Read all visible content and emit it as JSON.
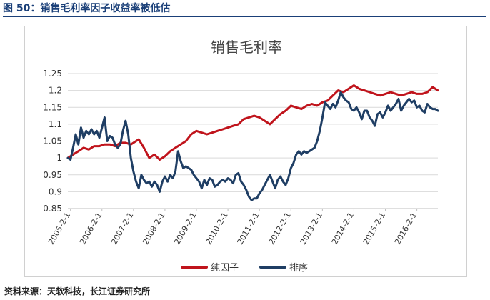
{
  "caption": "图 50：销售毛利率因子收益率被低估",
  "source": "资料来源：天软科技，长江证券研究所",
  "chart_data": {
    "type": "line",
    "title": "销售毛利率",
    "xlabel": "",
    "ylabel": "",
    "ylim": [
      0.85,
      1.25
    ],
    "yticks": [
      "0.85",
      "0.9",
      "0.95",
      "1",
      "1.05",
      "1.1",
      "1.15",
      "1.2",
      "1.25"
    ],
    "xticks": [
      "2005-2-1",
      "2006-2-1",
      "2007-2-1",
      "2008-2-1",
      "2009-2-1",
      "2010-2-1",
      "2011-2-1",
      "2012-2-1",
      "2013-2-1",
      "2014-2-1",
      "2015-2-1",
      "2016-2-1"
    ],
    "grid": true,
    "legend_position": "bottom",
    "x_start": "2005-01",
    "x_end": "2016-10",
    "series": [
      {
        "name": "纯因子",
        "color": "#c0141c",
        "points": [
          [
            "2005-01",
            1.0
          ],
          [
            "2005-03",
            1.01
          ],
          [
            "2005-05",
            1.02
          ],
          [
            "2005-07",
            1.03
          ],
          [
            "2005-09",
            1.025
          ],
          [
            "2005-11",
            1.035
          ],
          [
            "2006-01",
            1.035
          ],
          [
            "2006-03",
            1.04
          ],
          [
            "2006-05",
            1.04
          ],
          [
            "2006-07",
            1.035
          ],
          [
            "2006-09",
            1.045
          ],
          [
            "2006-11",
            1.045
          ],
          [
            "2007-01",
            1.04
          ],
          [
            "2007-03",
            1.05
          ],
          [
            "2007-04",
            1.055
          ],
          [
            "2007-06",
            1.03
          ],
          [
            "2007-08",
            1.0
          ],
          [
            "2007-10",
            1.01
          ],
          [
            "2007-12",
            0.995
          ],
          [
            "2008-02",
            1.005
          ],
          [
            "2008-04",
            1.02
          ],
          [
            "2008-06",
            1.03
          ],
          [
            "2008-08",
            1.04
          ],
          [
            "2008-10",
            1.05
          ],
          [
            "2008-12",
            1.07
          ],
          [
            "2009-02",
            1.08
          ],
          [
            "2009-04",
            1.075
          ],
          [
            "2009-06",
            1.07
          ],
          [
            "2009-08",
            1.075
          ],
          [
            "2009-10",
            1.08
          ],
          [
            "2009-12",
            1.085
          ],
          [
            "2010-02",
            1.09
          ],
          [
            "2010-04",
            1.095
          ],
          [
            "2010-06",
            1.1
          ],
          [
            "2010-08",
            1.115
          ],
          [
            "2010-10",
            1.12
          ],
          [
            "2010-12",
            1.125
          ],
          [
            "2011-02",
            1.12
          ],
          [
            "2011-04",
            1.11
          ],
          [
            "2011-06",
            1.1
          ],
          [
            "2011-08",
            1.115
          ],
          [
            "2011-10",
            1.13
          ],
          [
            "2011-12",
            1.14
          ],
          [
            "2012-02",
            1.155
          ],
          [
            "2012-04",
            1.15
          ],
          [
            "2012-06",
            1.145
          ],
          [
            "2012-08",
            1.155
          ],
          [
            "2012-10",
            1.16
          ],
          [
            "2012-12",
            1.155
          ],
          [
            "2013-02",
            1.165
          ],
          [
            "2013-04",
            1.17
          ],
          [
            "2013-06",
            1.185
          ],
          [
            "2013-08",
            1.2
          ],
          [
            "2013-10",
            1.195
          ],
          [
            "2013-12",
            1.205
          ],
          [
            "2014-02",
            1.215
          ],
          [
            "2014-04",
            1.205
          ],
          [
            "2014-06",
            1.2
          ],
          [
            "2014-08",
            1.195
          ],
          [
            "2014-10",
            1.19
          ],
          [
            "2014-12",
            1.185
          ],
          [
            "2015-02",
            1.19
          ],
          [
            "2015-04",
            1.195
          ],
          [
            "2015-06",
            1.19
          ],
          [
            "2015-08",
            1.185
          ],
          [
            "2015-10",
            1.19
          ],
          [
            "2015-12",
            1.195
          ],
          [
            "2016-02",
            1.19
          ],
          [
            "2016-04",
            1.19
          ],
          [
            "2016-06",
            1.195
          ],
          [
            "2016-08",
            1.21
          ],
          [
            "2016-10",
            1.2
          ]
        ]
      },
      {
        "name": "排序",
        "color": "#1f3e64",
        "points": [
          [
            "2005-01",
            1.0
          ],
          [
            "2005-02",
            0.995
          ],
          [
            "2005-03",
            1.03
          ],
          [
            "2005-04",
            1.07
          ],
          [
            "2005-05",
            1.04
          ],
          [
            "2005-06",
            1.09
          ],
          [
            "2005-07",
            1.06
          ],
          [
            "2005-08",
            1.08
          ],
          [
            "2005-09",
            1.07
          ],
          [
            "2005-10",
            1.085
          ],
          [
            "2005-11",
            1.07
          ],
          [
            "2005-12",
            1.08
          ],
          [
            "2006-01",
            1.06
          ],
          [
            "2006-02",
            1.09
          ],
          [
            "2006-03",
            1.12
          ],
          [
            "2006-04",
            1.05
          ],
          [
            "2006-05",
            1.065
          ],
          [
            "2006-06",
            1.06
          ],
          [
            "2006-07",
            1.04
          ],
          [
            "2006-08",
            1.03
          ],
          [
            "2006-09",
            1.04
          ],
          [
            "2006-10",
            1.08
          ],
          [
            "2006-11",
            1.11
          ],
          [
            "2006-12",
            1.07
          ],
          [
            "2007-01",
            1.0
          ],
          [
            "2007-02",
            0.96
          ],
          [
            "2007-03",
            0.93
          ],
          [
            "2007-04",
            0.91
          ],
          [
            "2007-05",
            0.95
          ],
          [
            "2007-06",
            0.935
          ],
          [
            "2007-07",
            0.925
          ],
          [
            "2007-08",
            0.93
          ],
          [
            "2007-09",
            0.915
          ],
          [
            "2007-10",
            0.93
          ],
          [
            "2007-11",
            0.92
          ],
          [
            "2007-12",
            0.9
          ],
          [
            "2008-01",
            0.93
          ],
          [
            "2008-02",
            0.945
          ],
          [
            "2008-03",
            0.93
          ],
          [
            "2008-04",
            0.95
          ],
          [
            "2008-05",
            0.94
          ],
          [
            "2008-06",
            0.96
          ],
          [
            "2008-07",
            1.02
          ],
          [
            "2008-08",
            0.99
          ],
          [
            "2008-09",
            0.97
          ],
          [
            "2008-10",
            0.975
          ],
          [
            "2008-11",
            0.97
          ],
          [
            "2008-12",
            0.965
          ],
          [
            "2009-01",
            0.95
          ],
          [
            "2009-02",
            0.94
          ],
          [
            "2009-03",
            0.93
          ],
          [
            "2009-04",
            0.91
          ],
          [
            "2009-05",
            0.935
          ],
          [
            "2009-06",
            0.92
          ],
          [
            "2009-07",
            0.94
          ],
          [
            "2009-08",
            0.935
          ],
          [
            "2009-09",
            0.915
          ],
          [
            "2009-10",
            0.92
          ],
          [
            "2009-11",
            0.93
          ],
          [
            "2009-12",
            0.935
          ],
          [
            "2010-01",
            0.93
          ],
          [
            "2010-02",
            0.94
          ],
          [
            "2010-03",
            0.935
          ],
          [
            "2010-04",
            0.925
          ],
          [
            "2010-05",
            0.95
          ],
          [
            "2010-06",
            0.955
          ],
          [
            "2010-07",
            0.93
          ],
          [
            "2010-08",
            0.92
          ],
          [
            "2010-09",
            0.905
          ],
          [
            "2010-10",
            0.885
          ],
          [
            "2010-11",
            0.875
          ],
          [
            "2010-12",
            0.88
          ],
          [
            "2011-01",
            0.88
          ],
          [
            "2011-02",
            0.895
          ],
          [
            "2011-03",
            0.905
          ],
          [
            "2011-04",
            0.92
          ],
          [
            "2011-05",
            0.935
          ],
          [
            "2011-06",
            0.95
          ],
          [
            "2011-07",
            0.93
          ],
          [
            "2011-08",
            0.91
          ],
          [
            "2011-09",
            0.935
          ],
          [
            "2011-10",
            0.945
          ],
          [
            "2011-11",
            0.93
          ],
          [
            "2011-12",
            0.92
          ],
          [
            "2012-01",
            0.94
          ],
          [
            "2012-02",
            0.97
          ],
          [
            "2012-03",
            0.985
          ],
          [
            "2012-04",
            1.01
          ],
          [
            "2012-05",
            1.02
          ],
          [
            "2012-06",
            1.01
          ],
          [
            "2012-07",
            1.02
          ],
          [
            "2012-08",
            1.015
          ],
          [
            "2012-09",
            1.02
          ],
          [
            "2012-10",
            1.025
          ],
          [
            "2012-11",
            1.03
          ],
          [
            "2012-12",
            1.05
          ],
          [
            "2013-01",
            1.08
          ],
          [
            "2013-02",
            1.12
          ],
          [
            "2013-03",
            1.165
          ],
          [
            "2013-04",
            1.155
          ],
          [
            "2013-05",
            1.145
          ],
          [
            "2013-06",
            1.16
          ],
          [
            "2013-07",
            1.15
          ],
          [
            "2013-08",
            1.17
          ],
          [
            "2013-09",
            1.195
          ],
          [
            "2013-10",
            1.18
          ],
          [
            "2013-11",
            1.17
          ],
          [
            "2013-12",
            1.165
          ],
          [
            "2014-01",
            1.145
          ],
          [
            "2014-02",
            1.14
          ],
          [
            "2014-03",
            1.15
          ],
          [
            "2014-04",
            1.135
          ],
          [
            "2014-05",
            1.115
          ],
          [
            "2014-06",
            1.14
          ],
          [
            "2014-07",
            1.14
          ],
          [
            "2014-08",
            1.12
          ],
          [
            "2014-09",
            1.11
          ],
          [
            "2014-10",
            1.095
          ],
          [
            "2014-11",
            1.13
          ],
          [
            "2014-12",
            1.135
          ],
          [
            "2015-01",
            1.12
          ],
          [
            "2015-02",
            1.135
          ],
          [
            "2015-03",
            1.155
          ],
          [
            "2015-04",
            1.14
          ],
          [
            "2015-05",
            1.15
          ],
          [
            "2015-06",
            1.16
          ],
          [
            "2015-07",
            1.175
          ],
          [
            "2015-08",
            1.14
          ],
          [
            "2015-09",
            1.155
          ],
          [
            "2015-10",
            1.165
          ],
          [
            "2015-11",
            1.175
          ],
          [
            "2015-12",
            1.165
          ],
          [
            "2016-01",
            1.17
          ],
          [
            "2016-02",
            1.15
          ],
          [
            "2016-03",
            1.155
          ],
          [
            "2016-04",
            1.14
          ],
          [
            "2016-05",
            1.135
          ],
          [
            "2016-06",
            1.16
          ],
          [
            "2016-07",
            1.15
          ],
          [
            "2016-08",
            1.145
          ],
          [
            "2016-09",
            1.145
          ],
          [
            "2016-10",
            1.14
          ]
        ]
      }
    ]
  }
}
